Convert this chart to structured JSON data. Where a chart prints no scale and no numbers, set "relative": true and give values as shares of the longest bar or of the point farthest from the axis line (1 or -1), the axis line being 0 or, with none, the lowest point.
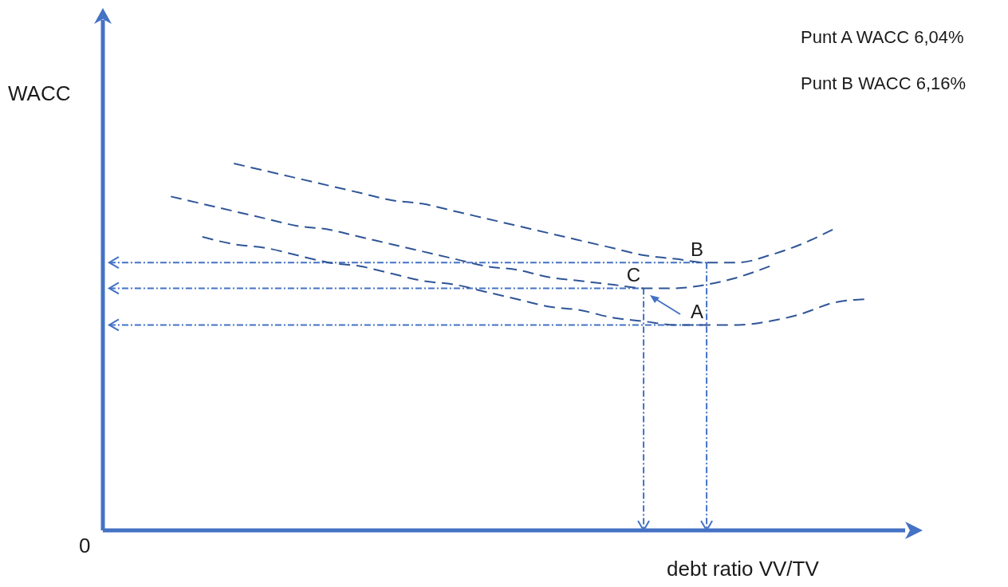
{
  "chart_data": {
    "type": "line",
    "relative": true,
    "xlabel": "debt ratio VV/TV",
    "ylabel": "WACC",
    "categories": [
      null,
      null,
      null,
      null,
      null,
      null,
      null,
      null,
      null,
      null,
      null,
      null,
      null,
      null,
      null,
      null,
      null,
      null,
      null,
      null,
      null,
      null,
      null
    ],
    "series": [
      {
        "color": "#2f5597",
        "values": [
          null,
          null,
          1.0,
          0.98,
          0.96,
          0.94,
          0.92,
          0.9,
          0.89,
          0.87,
          0.85,
          0.83,
          0.81,
          0.79,
          0.77,
          0.75,
          0.74,
          0.73,
          0.73,
          0.75,
          0.78,
          0.82,
          null
        ]
      },
      {
        "color": "#2f5597",
        "values": [
          0.91,
          0.89,
          0.87,
          0.85,
          0.83,
          0.82,
          0.8,
          0.78,
          0.76,
          0.74,
          0.72,
          0.71,
          0.69,
          0.68,
          0.67,
          0.66,
          0.66,
          0.67,
          0.69,
          0.72,
          null,
          null,
          null
        ]
      },
      {
        "color": "#2f5597",
        "values": [
          null,
          0.8,
          0.78,
          0.77,
          0.75,
          0.73,
          0.72,
          0.7,
          0.68,
          0.67,
          0.65,
          0.63,
          0.61,
          0.6,
          0.58,
          0.57,
          0.56,
          0.56,
          0.56,
          0.57,
          0.59,
          0.62,
          0.63
        ]
      }
    ],
    "line_style": "dashed",
    "marker": "none",
    "legend": false,
    "grid": false,
    "ref_lines": [
      {
        "axis": "y",
        "value": 0.73,
        "label": "B",
        "color": "#4472c4",
        "line_style": "dashdot"
      },
      {
        "axis": "y",
        "value": 0.66,
        "label": "C",
        "color": "#4472c4",
        "line_style": "dashdot"
      },
      {
        "axis": "y",
        "value": 0.56,
        "label": "A",
        "color": "#4472c4",
        "line_style": "dashdot"
      }
    ],
    "annotations": [
      "Punt A WACC 6,04%",
      "Punt B WACC 6,16%",
      "0"
    ]
  }
}
